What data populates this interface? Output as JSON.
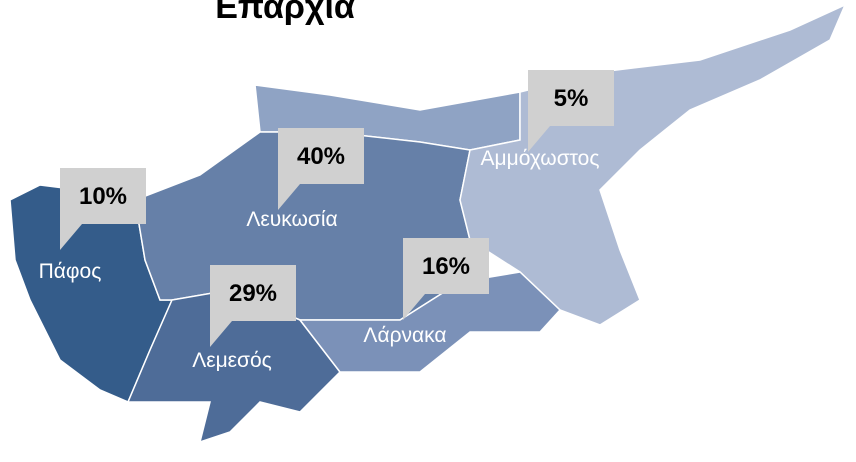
{
  "chart_data": {
    "type": "map",
    "title": "Επαρχία",
    "categories": [
      "Πάφος",
      "Λευκωσία",
      "Αμμόχωστος",
      "Λεμεσός",
      "Λάρνακα"
    ],
    "values": [
      10,
      40,
      5,
      29,
      16
    ],
    "value_labels": [
      "10%",
      "40%",
      "5%",
      "29%",
      "16%"
    ],
    "colors": [
      "#345c8a",
      "#6680a8",
      "#aebbd4",
      "#4e6c98",
      "#7b91b8"
    ]
  }
}
